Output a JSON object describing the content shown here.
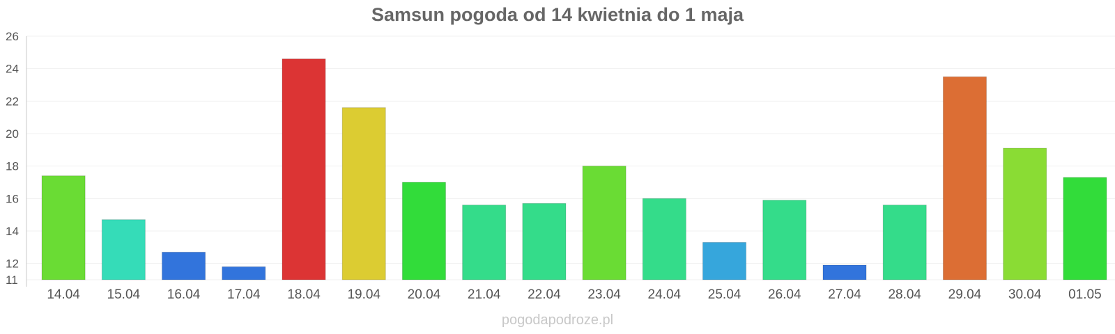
{
  "chart_data": {
    "type": "bar",
    "title": "Samsun pogoda od 14 kwietnia do 1 maja",
    "categories": [
      "14.04",
      "15.04",
      "16.04",
      "17.04",
      "18.04",
      "19.04",
      "20.04",
      "21.04",
      "22.04",
      "23.04",
      "24.04",
      "25.04",
      "26.04",
      "27.04",
      "28.04",
      "29.04",
      "30.04",
      "01.05"
    ],
    "values": [
      17.4,
      14.7,
      12.7,
      11.8,
      24.6,
      21.6,
      17.0,
      15.6,
      15.7,
      18.0,
      16.0,
      13.3,
      15.9,
      11.9,
      15.6,
      23.5,
      19.1,
      17.3
    ],
    "colors": [
      "#6adc34",
      "#35dcb8",
      "#3274dc",
      "#3274dc",
      "#dc3434",
      "#dccc32",
      "#32dc3a",
      "#34dc8a",
      "#34dc8a",
      "#6adc34",
      "#34dc8a",
      "#36a6dc",
      "#34dc8a",
      "#3274dc",
      "#34dc8a",
      "#dc6e34",
      "#8adc34",
      "#32dc3a"
    ],
    "yticks": [
      11,
      12,
      14,
      16,
      18,
      20,
      22,
      24,
      26
    ],
    "ylim": [
      11,
      26
    ],
    "grid": true,
    "xlabel": "",
    "ylabel": ""
  },
  "watermark": "pogodapodroze.pl"
}
